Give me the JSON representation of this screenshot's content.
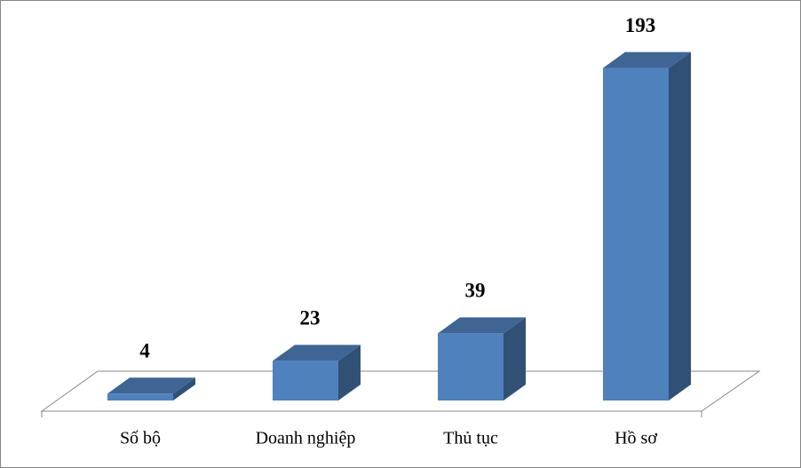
{
  "chart_data": {
    "type": "bar3d",
    "categories": [
      "Số bộ",
      "Doanh nghiệp",
      "Thủ tục",
      "Hồ sơ"
    ],
    "values": [
      4,
      23,
      39,
      193
    ],
    "color": "#4f81bd",
    "ylim": [
      0,
      200
    ]
  }
}
